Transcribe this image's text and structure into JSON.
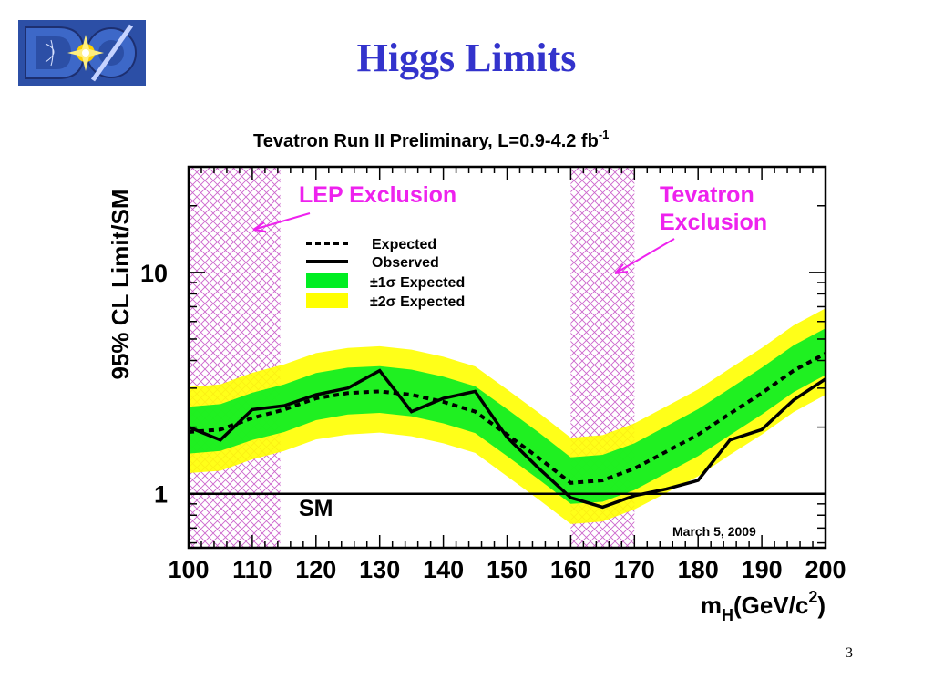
{
  "slide": {
    "title": "Higgs Limits",
    "page_number": "3",
    "logo_text": "DØ"
  },
  "colors": {
    "title": "#3333cc",
    "band_1sigma": "#00ee22",
    "band_2sigma": "#ffff00",
    "hatch": "#cc66cc",
    "annotation": "#ee22ee",
    "curves": "#000000"
  },
  "chart_data": {
    "type": "line",
    "title": "Tevatron Run II Preliminary, L=0.9-4.2 fb",
    "title_superscript": "-1",
    "ylabel": "95% CL Limit/SM",
    "xlabel_main": "m",
    "xlabel_sub": "H",
    "xlabel_rest": "(GeV/c",
    "xlabel_sup": "2",
    "xlabel_close": ")",
    "xlim": [
      100,
      200
    ],
    "ylim": [
      0.57,
      30
    ],
    "yscale": "log",
    "x_ticks": [
      "100",
      "110",
      "120",
      "130",
      "140",
      "150",
      "160",
      "170",
      "180",
      "190",
      "200"
    ],
    "y_ticks": [
      {
        "value": 1,
        "label": "1"
      },
      {
        "value": 10,
        "label": "10"
      }
    ],
    "x": [
      100,
      105,
      110,
      115,
      120,
      125,
      130,
      135,
      140,
      145,
      150,
      155,
      160,
      165,
      170,
      175,
      180,
      185,
      190,
      195,
      200
    ],
    "series": [
      {
        "name": "Expected",
        "style": "dashed",
        "values": [
          1.9,
          1.95,
          2.2,
          2.4,
          2.7,
          2.85,
          2.9,
          2.8,
          2.6,
          2.35,
          1.85,
          1.45,
          1.12,
          1.15,
          1.3,
          1.55,
          1.85,
          2.3,
          2.85,
          3.6,
          4.3
        ]
      },
      {
        "name": "Observed",
        "style": "solid",
        "values": [
          2.0,
          1.75,
          2.4,
          2.5,
          2.8,
          3.0,
          3.6,
          2.35,
          2.7,
          2.9,
          1.8,
          1.3,
          0.96,
          0.87,
          0.98,
          1.05,
          1.15,
          1.75,
          1.95,
          2.65,
          3.3
        ]
      },
      {
        "name": "±1σ Expected",
        "style": "band",
        "lower": [
          1.52,
          1.56,
          1.75,
          1.9,
          2.15,
          2.28,
          2.32,
          2.24,
          2.08,
          1.88,
          1.48,
          1.16,
          0.9,
          0.92,
          1.04,
          1.24,
          1.48,
          1.84,
          2.28,
          2.88,
          3.44
        ],
        "upper": [
          2.47,
          2.54,
          2.86,
          3.12,
          3.51,
          3.71,
          3.77,
          3.64,
          3.38,
          3.06,
          2.41,
          1.89,
          1.46,
          1.5,
          1.69,
          2.02,
          2.41,
          2.99,
          3.71,
          4.68,
          5.59
        ]
      },
      {
        "name": "±2σ Expected",
        "style": "band",
        "lower": [
          1.24,
          1.27,
          1.43,
          1.56,
          1.76,
          1.85,
          1.89,
          1.82,
          1.69,
          1.53,
          1.2,
          0.94,
          0.73,
          0.75,
          0.85,
          1.01,
          1.2,
          1.5,
          1.85,
          2.34,
          2.8
        ],
        "upper": [
          3.04,
          3.12,
          3.52,
          3.84,
          4.32,
          4.56,
          4.64,
          4.48,
          4.16,
          3.76,
          2.96,
          2.32,
          1.79,
          1.84,
          2.08,
          2.48,
          2.96,
          3.68,
          4.56,
          5.76,
          6.88
        ]
      }
    ],
    "exclusion_regions": [
      {
        "label": "LEP Exclusion",
        "x_range": [
          100,
          114.4
        ]
      },
      {
        "label_line1": "Tevatron",
        "label_line2": "Exclusion",
        "x_range": [
          160,
          170
        ]
      }
    ],
    "reference_line": {
      "value": 1,
      "label": "SM"
    },
    "date_label": "March 5, 2009",
    "legend": {
      "placement": "top-center",
      "entries": [
        {
          "label": "Expected",
          "symbol": "dashed"
        },
        {
          "label": "Observed",
          "symbol": "solid"
        },
        {
          "label": "±1σ Expected",
          "symbol": "green-box"
        },
        {
          "label": "±2σ Expected",
          "symbol": "yellow-box"
        }
      ]
    }
  }
}
